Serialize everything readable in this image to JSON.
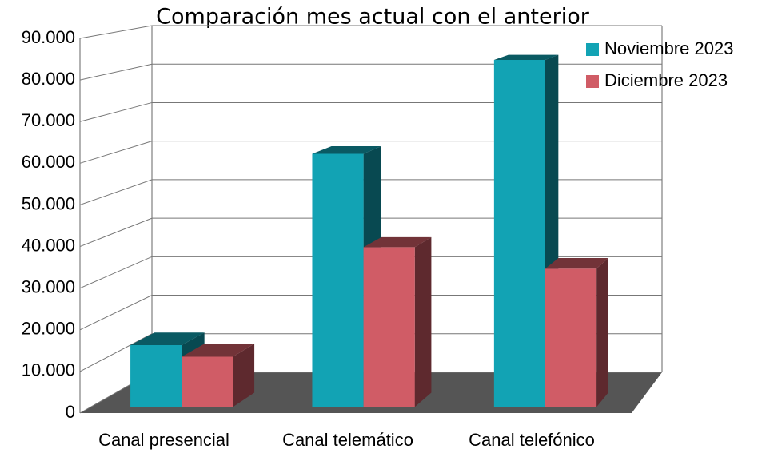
{
  "chart_data": {
    "type": "bar3d",
    "title": "Comparación mes actual con el anterior",
    "categories": [
      "Canal presencial",
      "Canal telemático",
      "Canal telefónico"
    ],
    "series": [
      {
        "name": "Noviembre 2023",
        "color": "#12a3b4",
        "values": [
          15000,
          61500,
          84300
        ]
      },
      {
        "name": "Diciembre 2023",
        "color": "#d05c66",
        "values": [
          12200,
          38800,
          33600
        ]
      }
    ],
    "ylim": [
      0,
      90000
    ],
    "yticks": [
      0,
      {
        "value": 10000,
        "label": "10.000"
      },
      {
        "value": 20000,
        "label": "20.000"
      },
      {
        "value": 30000,
        "label": "30.000"
      },
      {
        "value": 40000,
        "label": "40.000"
      },
      {
        "value": 50000,
        "label": "50.000"
      },
      {
        "value": 60000,
        "label": "60.000"
      },
      {
        "value": 70000,
        "label": "70.000"
      },
      {
        "value": 80000,
        "label": "80.000"
      },
      {
        "value": 90000,
        "label": "90.000"
      }
    ],
    "grid": true,
    "legend": "top-right"
  }
}
